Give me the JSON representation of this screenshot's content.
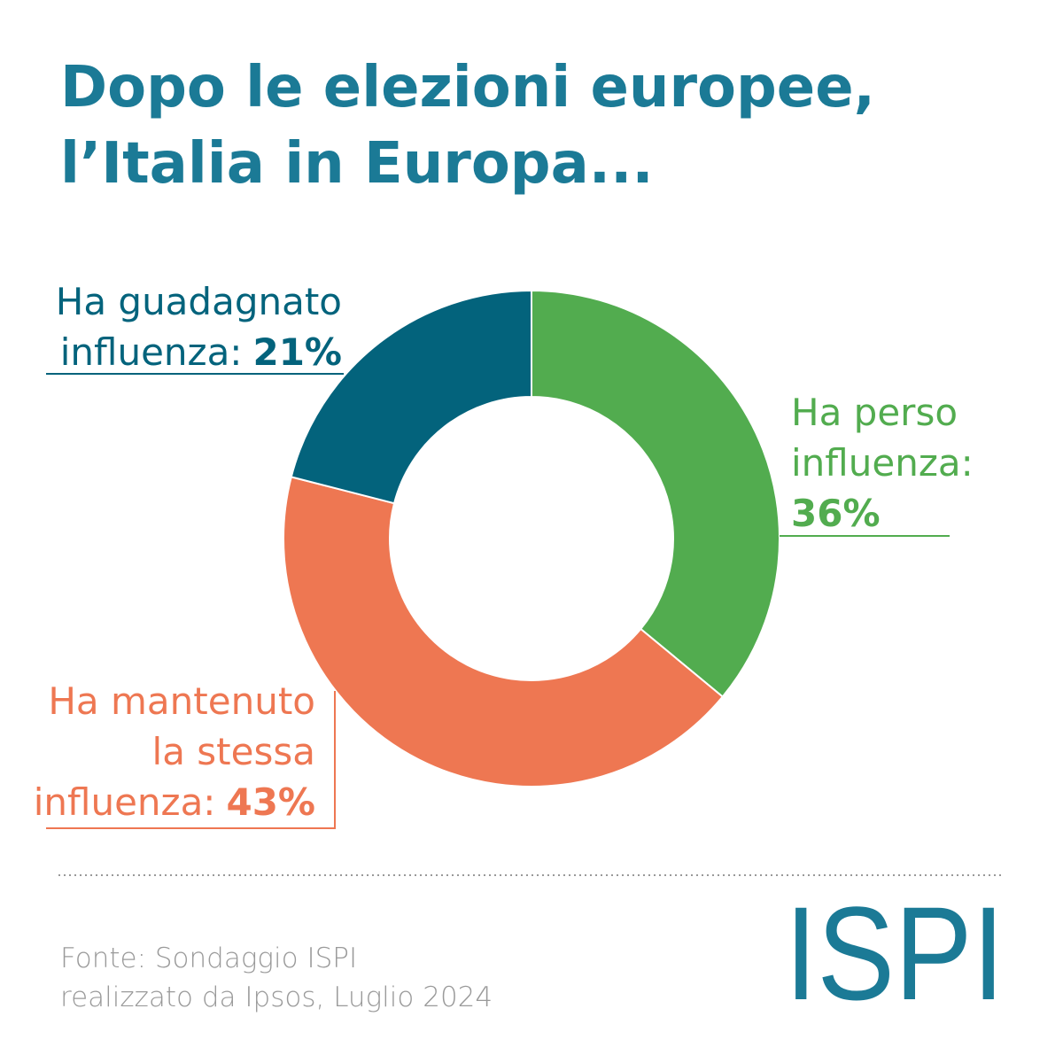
{
  "chart_data": {
    "type": "donut",
    "title": [
      "Dopo le elezioni europee,",
      "l’Italia in Europa..."
    ],
    "categories": [
      [
        "Ha perso",
        "influenza:"
      ],
      [
        "Ha mantenuto",
        "la stessa",
        "influenza:"
      ],
      [
        "Ha guadagnato",
        "influenza:"
      ]
    ],
    "values": [
      36,
      43,
      21
    ],
    "value_labels": [
      "36%",
      "43%",
      "21%"
    ],
    "colors": [
      "#52ac4f",
      "#ee7752",
      "#03637c"
    ],
    "source": [
      "Fonte: Sondaggio ISPI",
      "realizzato da Ipsos, Luglio 2024"
    ]
  },
  "logo": "ISPI"
}
